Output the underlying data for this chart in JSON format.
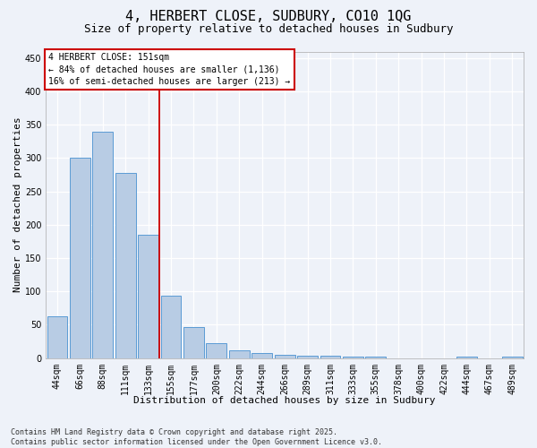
{
  "title": "4, HERBERT CLOSE, SUDBURY, CO10 1QG",
  "subtitle": "Size of property relative to detached houses in Sudbury",
  "xlabel": "Distribution of detached houses by size in Sudbury",
  "ylabel": "Number of detached properties",
  "categories": [
    "44sqm",
    "66sqm",
    "88sqm",
    "111sqm",
    "133sqm",
    "155sqm",
    "177sqm",
    "200sqm",
    "222sqm",
    "244sqm",
    "266sqm",
    "289sqm",
    "311sqm",
    "333sqm",
    "355sqm",
    "378sqm",
    "400sqm",
    "422sqm",
    "444sqm",
    "467sqm",
    "489sqm"
  ],
  "values": [
    63,
    300,
    340,
    278,
    185,
    93,
    46,
    23,
    12,
    7,
    5,
    4,
    4,
    2,
    2,
    0,
    0,
    0,
    2,
    0,
    2
  ],
  "bar_color": "#b8cce4",
  "bar_edge_color": "#5b9bd5",
  "background_color": "#eef2f9",
  "grid_color": "#ffffff",
  "vline_color": "#cc0000",
  "vline_position": 4.5,
  "annotation_title": "4 HERBERT CLOSE: 151sqm",
  "annotation_line1": "← 84% of detached houses are smaller (1,136)",
  "annotation_line2": "16% of semi-detached houses are larger (213) →",
  "annotation_box_edgecolor": "#cc0000",
  "ylim": [
    0,
    460
  ],
  "yticks": [
    0,
    50,
    100,
    150,
    200,
    250,
    300,
    350,
    400,
    450
  ],
  "footer_line1": "Contains HM Land Registry data © Crown copyright and database right 2025.",
  "footer_line2": "Contains public sector information licensed under the Open Government Licence v3.0.",
  "title_fontsize": 11,
  "subtitle_fontsize": 9,
  "xlabel_fontsize": 8,
  "ylabel_fontsize": 8,
  "tick_fontsize": 7,
  "annot_fontsize": 7,
  "footer_fontsize": 6
}
